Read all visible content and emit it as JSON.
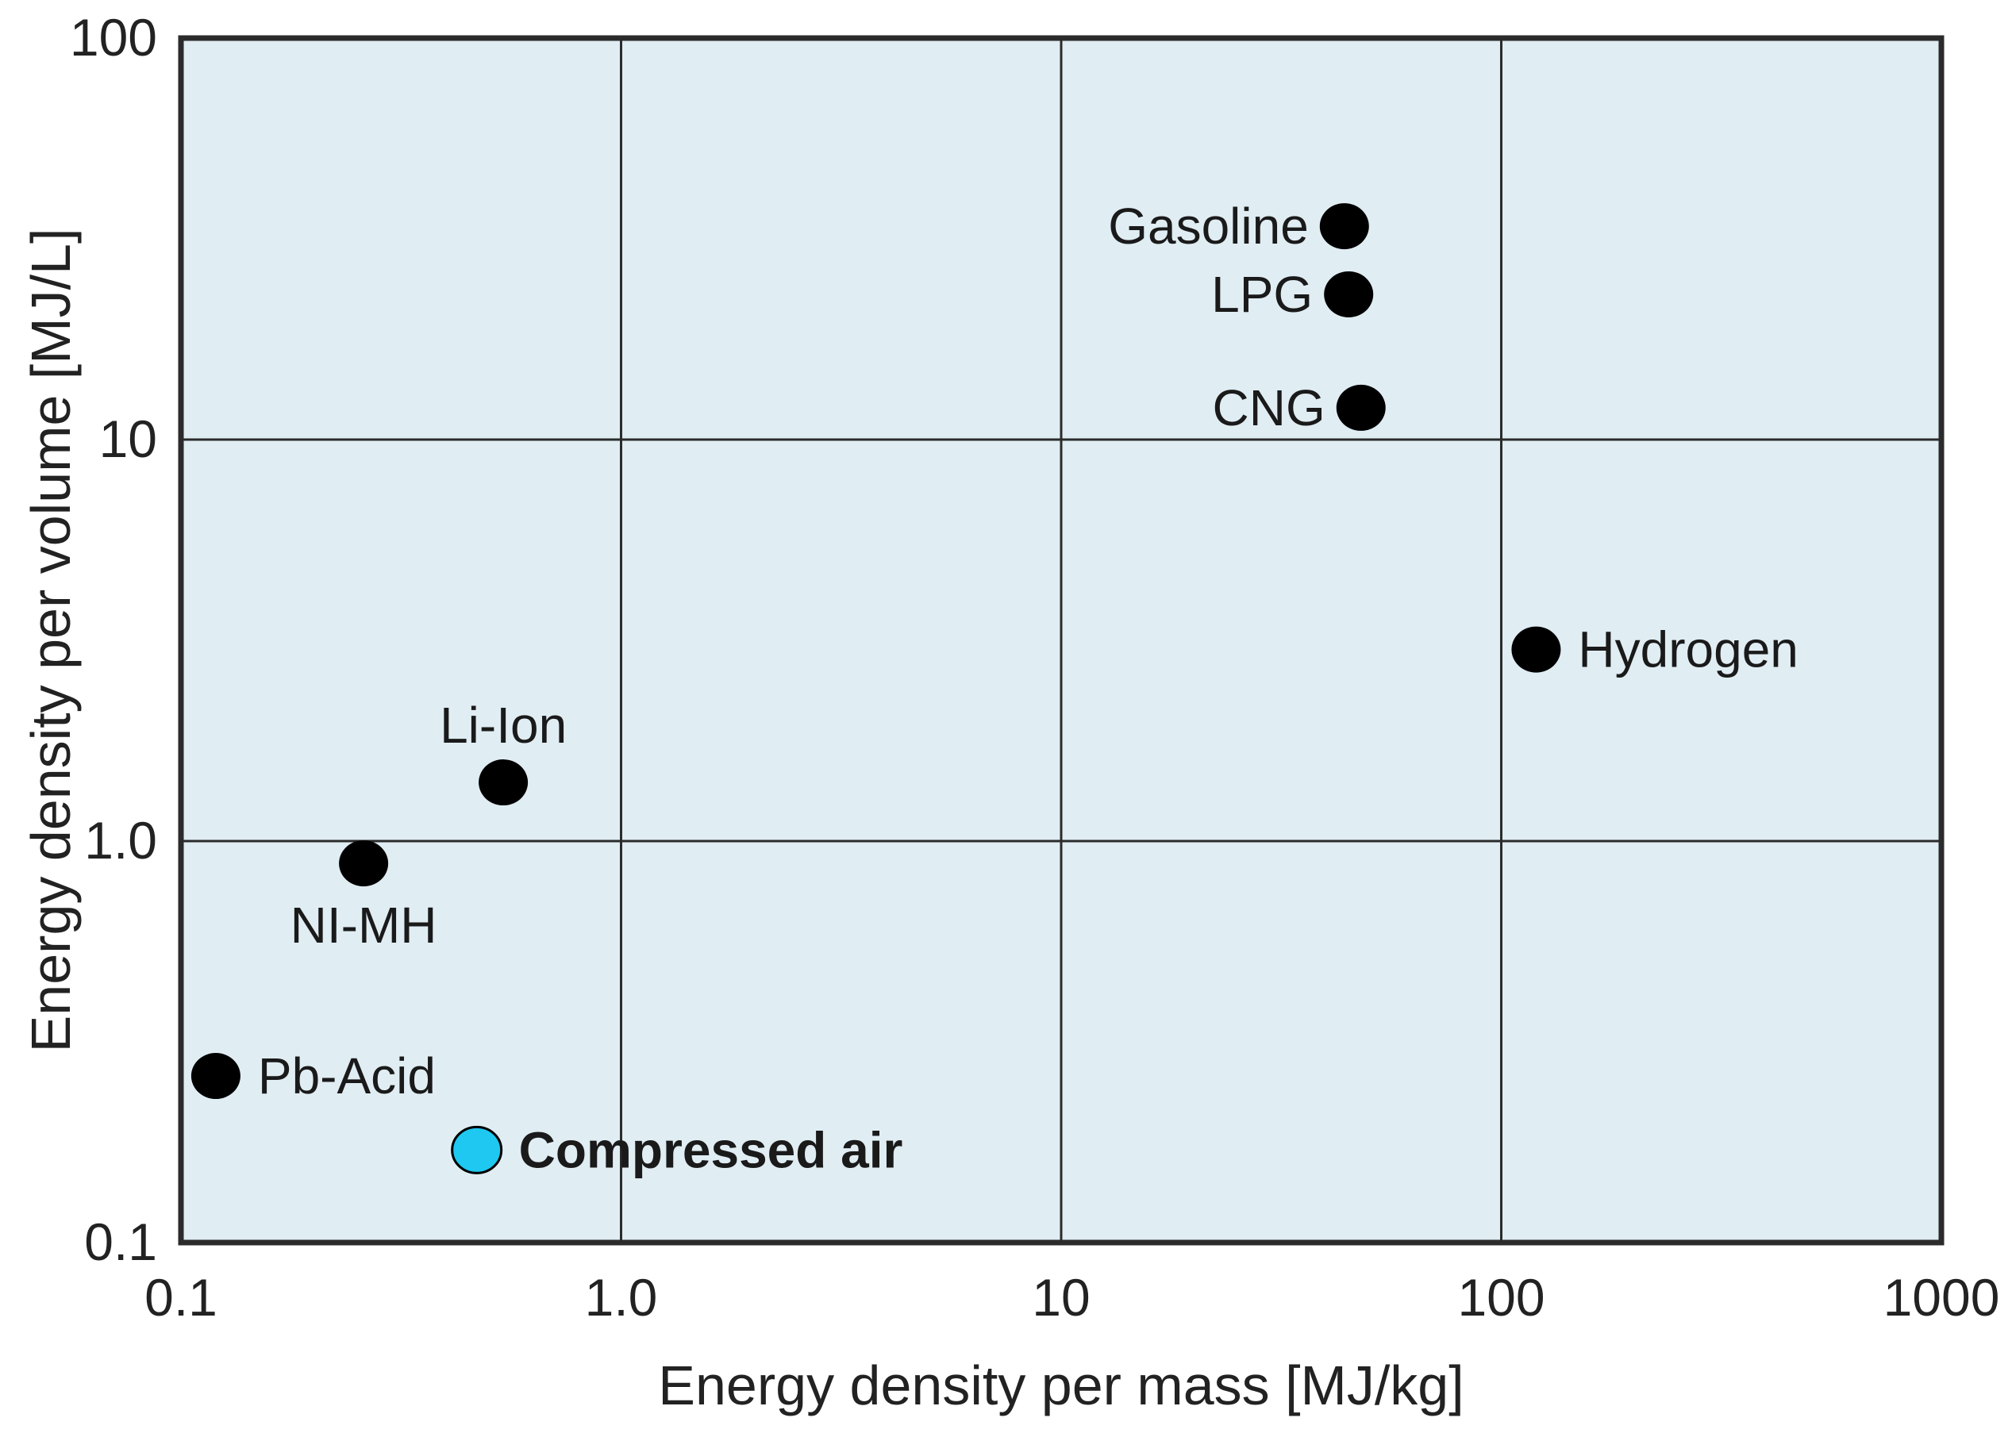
{
  "chart_data": {
    "type": "scatter",
    "title": "",
    "xlabel": "Energy density per mass [MJ/kg]",
    "ylabel": "Energy density per volume [MJ/L]",
    "x_scale": "log",
    "y_scale": "log",
    "xlim": [
      0.1,
      1000
    ],
    "ylim": [
      0.1,
      100
    ],
    "grid": true,
    "x_ticks": [
      {
        "value": 0.1,
        "label": "0.1"
      },
      {
        "value": 1,
        "label": "1.0"
      },
      {
        "value": 10,
        "label": "10"
      },
      {
        "value": 100,
        "label": "100"
      },
      {
        "value": 1000,
        "label": "1000"
      }
    ],
    "y_ticks": [
      {
        "value": 0.1,
        "label": "0.1"
      },
      {
        "value": 1,
        "label": "1.0"
      },
      {
        "value": 10,
        "label": "10"
      },
      {
        "value": 100,
        "label": "100"
      }
    ],
    "colors": {
      "plot_background": "#e0edf3",
      "frame": "#2b2b2b",
      "grid": "#2b2b2b",
      "point": "#000000",
      "highlight_point": "#1ec8f0",
      "highlight_text": "#1595c7"
    },
    "points": [
      {
        "name": "Gasoline",
        "x": 44,
        "y": 34,
        "label_side": "left",
        "highlight": false
      },
      {
        "name": "LPG",
        "x": 45,
        "y": 23,
        "label_side": "left",
        "highlight": false
      },
      {
        "name": "CNG",
        "x": 48,
        "y": 12,
        "label_side": "left",
        "highlight": false
      },
      {
        "name": "Hydrogen",
        "x": 120,
        "y": 3,
        "label_side": "right",
        "highlight": false
      },
      {
        "name": "Li-Ion",
        "x": 0.54,
        "y": 1.4,
        "label_side": "top",
        "highlight": false
      },
      {
        "name": "NI-MH",
        "x": 0.26,
        "y": 0.88,
        "label_side": "bottom",
        "highlight": false
      },
      {
        "name": "Pb-Acid",
        "x": 0.12,
        "y": 0.26,
        "label_side": "right",
        "highlight": false
      },
      {
        "name": "Compressed air",
        "x": 0.47,
        "y": 0.17,
        "label_side": "right",
        "highlight": true
      }
    ]
  }
}
